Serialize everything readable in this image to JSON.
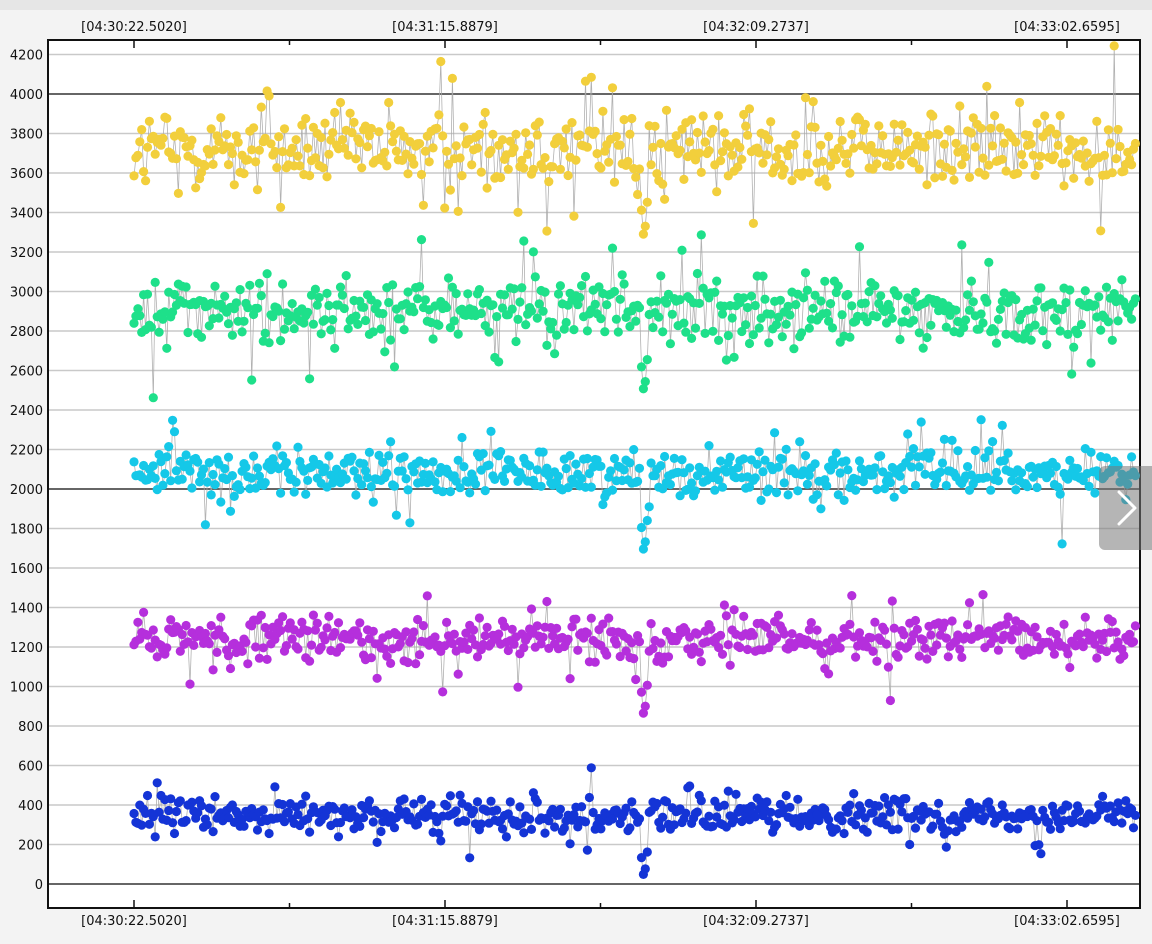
{
  "chart_data": {
    "type": "scatter",
    "title": "",
    "xlabel": "",
    "ylabel": "",
    "ylim": [
      0,
      4200
    ],
    "y_ticks": [
      0,
      200,
      400,
      600,
      800,
      1000,
      1200,
      1400,
      1600,
      1800,
      2000,
      2200,
      2400,
      2600,
      2800,
      3000,
      3200,
      3400,
      3600,
      3800,
      4000,
      4200
    ],
    "y_tick_labels": [
      "0",
      "200",
      "400",
      "600",
      "800",
      "1000",
      "1200",
      "1400",
      "1600",
      "1800",
      "2000",
      "2200",
      "2400",
      "2600",
      "2800",
      "3000",
      "3200",
      "3400",
      "3600",
      "3800",
      "4000",
      "4200"
    ],
    "emphasized_y": [
      0,
      2000,
      4000
    ],
    "x_time_labels": [
      "[04:30:22.5020]",
      "[04:31:15.8879]",
      "[04:32:09.2737]",
      "[04:33:02.6595]"
    ],
    "x_time_positions": [
      0,
      1,
      2,
      3
    ],
    "x_range": [
      0,
      3.22
    ],
    "points_per_series": 520,
    "grid": true,
    "legend": "none",
    "dip_x": 1.64,
    "series": [
      {
        "color": "#f2cf3c",
        "line_color": "#a8a8a8",
        "baseline": 3720,
        "spread": 180,
        "dip": 3250
      },
      {
        "color": "#1ee08a",
        "line_color": "#a8a8a8",
        "baseline": 2900,
        "spread": 150,
        "dip": 2470
      },
      {
        "color": "#15c8e8",
        "line_color": "#a8a8a8",
        "baseline": 2080,
        "spread": 110,
        "dip": 1660
      },
      {
        "color": "#b52fdc",
        "line_color": "#a8a8a8",
        "baseline": 1240,
        "spread": 100,
        "dip": 830
      },
      {
        "color": "#1434d6",
        "line_color": "#a8a8a8",
        "baseline": 350,
        "spread": 75,
        "dip": 20
      }
    ]
  },
  "nav": {
    "next_icon": "chevron-right-icon"
  }
}
